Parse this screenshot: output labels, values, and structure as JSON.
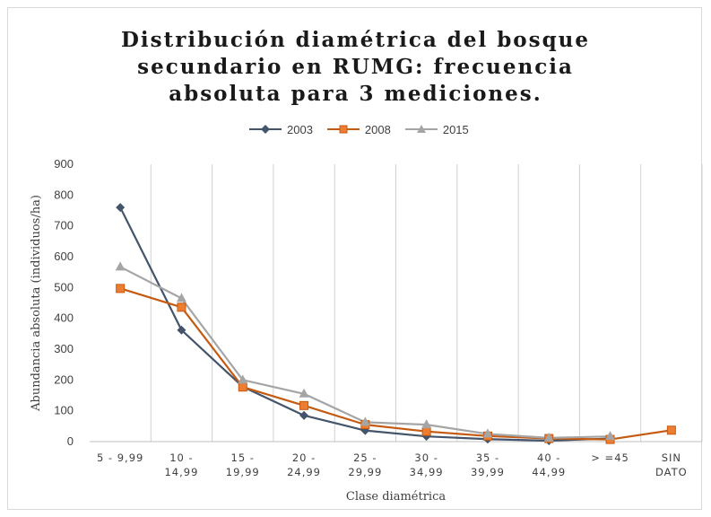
{
  "chart_data": {
    "type": "line",
    "title_lines": [
      "Distribución diamétrica del bosque",
      "secundario en RUMG: frecuencia",
      "absoluta para 3 mediciones."
    ],
    "xlabel": "Clase diamétrica",
    "ylabel": "Abundancia absoluta (individuos/ha)",
    "ylim": [
      0,
      900
    ],
    "yticks": [
      0,
      100,
      200,
      300,
      400,
      500,
      600,
      700,
      800,
      900
    ],
    "grid": "vertical",
    "legend_position": "top",
    "categories": [
      [
        "5 - 9,99"
      ],
      [
        "10 -",
        "14,99"
      ],
      [
        "15 -",
        "19,99"
      ],
      [
        "20 -",
        "24,99"
      ],
      [
        "25 -",
        "29,99"
      ],
      [
        "30 -",
        "34,99"
      ],
      [
        "35 -",
        "39,99"
      ],
      [
        "40 -",
        "44,99"
      ],
      [
        "> =45"
      ],
      [
        "SIN",
        "DATO"
      ]
    ],
    "series": [
      {
        "name": "2003",
        "color": "#44546a",
        "marker": "diamond",
        "values": [
          760,
          362,
          178,
          85,
          36,
          17,
          8,
          3,
          10,
          null
        ]
      },
      {
        "name": "2008",
        "color": "#c55a11",
        "marker": "square",
        "values": [
          497,
          436,
          177,
          117,
          55,
          33,
          18,
          10,
          7,
          37
        ]
      },
      {
        "name": "2015",
        "color": "#a5a5a5",
        "marker": "triangle",
        "values": [
          567,
          465,
          200,
          155,
          63,
          55,
          25,
          12,
          17,
          null
        ]
      }
    ]
  }
}
